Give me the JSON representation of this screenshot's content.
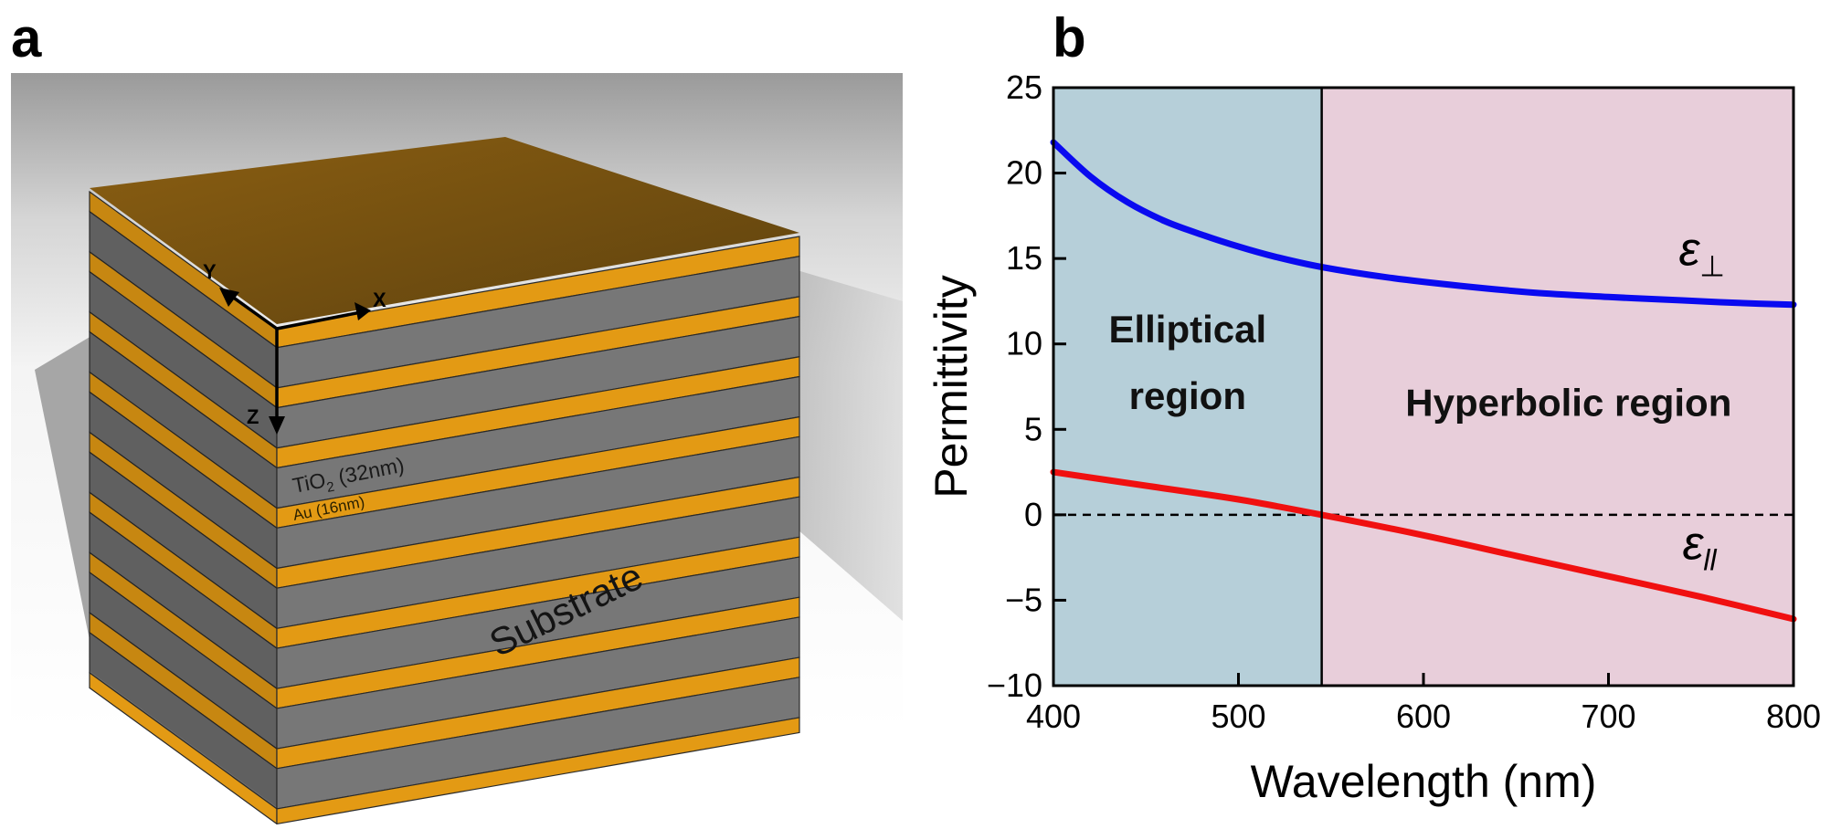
{
  "panels": {
    "a": {
      "letter": "a",
      "axis_labels": {
        "x": "X",
        "y": "Y",
        "z": "Z"
      },
      "tio2_prefix": "TiO",
      "tio2_sub": "2",
      "tio2_suffix": " (32nm)",
      "au_label": "Au (16nm)",
      "substrate_label": "Substrate",
      "colors": {
        "gold": "#E39A14",
        "gold_top": "#7A5410",
        "grey_layer": "#6E6E6E"
      }
    },
    "b": {
      "letter": "b"
    }
  },
  "chart_data": {
    "type": "line",
    "xlabel": "Wavelength (nm)",
    "ylabel": "Permittivity",
    "xlim": [
      400,
      800
    ],
    "ylim": [
      -10,
      25
    ],
    "xticks": [
      400,
      500,
      600,
      700,
      800
    ],
    "yticks": [
      25,
      20,
      15,
      10,
      5,
      0,
      -5,
      -10
    ],
    "yticklabels": [
      "25",
      "20",
      "15",
      "10",
      "5",
      "0",
      "−5",
      "−10"
    ],
    "boundary_x": 545,
    "regions": [
      {
        "name": "Elliptical",
        "line1": "Elliptical",
        "line2": "region",
        "x_range": [
          400,
          545
        ],
        "color": "#B6CFD9"
      },
      {
        "name": "Hyperbolic",
        "line1": "Hyperbolic region",
        "x_range": [
          545,
          800
        ],
        "color": "#E8CEDA"
      }
    ],
    "zero_line": {
      "y": 0,
      "style": "dashed"
    },
    "series": [
      {
        "name": "epsilon_perp",
        "label_symbol": "ε",
        "label_sub": "⊥",
        "color": "#0A0AF0",
        "x": [
          400,
          420,
          440,
          460,
          480,
          500,
          520,
          545,
          580,
          620,
          660,
          700,
          740,
          770,
          800
        ],
        "y": [
          21.8,
          19.8,
          18.3,
          17.2,
          16.4,
          15.7,
          15.1,
          14.5,
          13.9,
          13.4,
          13.0,
          12.75,
          12.55,
          12.4,
          12.3
        ]
      },
      {
        "name": "epsilon_parallel",
        "label_symbol": "ε",
        "label_sub": "ll",
        "color": "#F01010",
        "x": [
          400,
          450,
          500,
          545,
          600,
          650,
          700,
          750,
          800
        ],
        "y": [
          2.5,
          1.7,
          0.9,
          0.0,
          -1.2,
          -2.4,
          -3.6,
          -4.8,
          -6.1
        ]
      }
    ]
  }
}
